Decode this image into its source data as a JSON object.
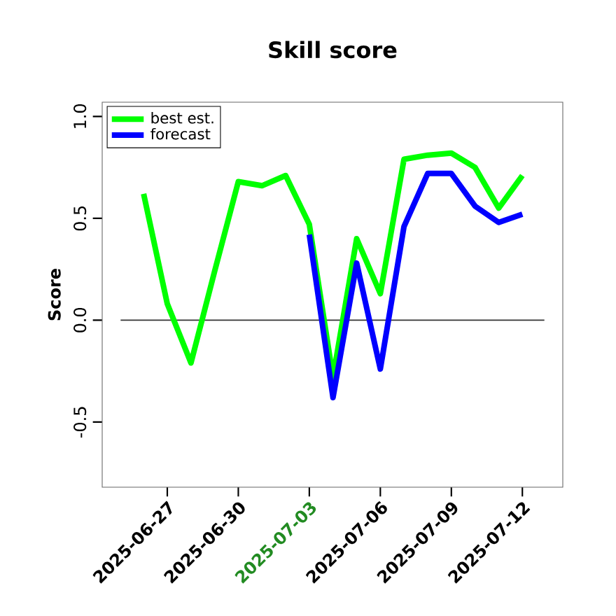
{
  "chart_data": {
    "type": "line",
    "title": "Skill score",
    "ylabel": "Score",
    "x": [
      "2025-06-26",
      "2025-06-27",
      "2025-06-28",
      "2025-06-29",
      "2025-06-30",
      "2025-07-01",
      "2025-07-02",
      "2025-07-03",
      "2025-07-04",
      "2025-07-05",
      "2025-07-06",
      "2025-07-07",
      "2025-07-08",
      "2025-07-09",
      "2025-07-10",
      "2025-07-11",
      "2025-07-12"
    ],
    "series": [
      {
        "name": "best est.",
        "color": "#00ff00",
        "values": [
          0.62,
          0.08,
          -0.21,
          0.24,
          0.68,
          0.66,
          0.71,
          0.47,
          -0.28,
          0.4,
          0.13,
          0.79,
          0.81,
          0.82,
          0.75,
          0.55,
          0.71
        ]
      },
      {
        "name": "forecast",
        "color": "#0000ff",
        "values": [
          null,
          null,
          null,
          null,
          null,
          null,
          null,
          0.42,
          -0.38,
          0.28,
          -0.24,
          0.46,
          0.72,
          0.72,
          0.56,
          0.48,
          0.52
        ]
      }
    ],
    "xlim": [
      "2025-06-24T06:00",
      "2025-07-13T17:00"
    ],
    "ylim": [
      -0.82,
      1.07
    ],
    "xticks": [
      "2025-06-27",
      "2025-06-30",
      "2025-07-03",
      "2025-07-06",
      "2025-07-09",
      "2025-07-12"
    ],
    "yticks": [
      {
        "value": -0.5,
        "label": "-0.5"
      },
      {
        "value": 0,
        "label": "0.0"
      },
      {
        "value": 0.5,
        "label": "0.5"
      },
      {
        "value": 1,
        "label": "1.0"
      }
    ],
    "ref_lines": [
      {
        "axis": "y",
        "value": 0,
        "color": "#333333"
      }
    ],
    "grid": false,
    "legend": "top left",
    "line_style": "solid",
    "marker": "none"
  }
}
